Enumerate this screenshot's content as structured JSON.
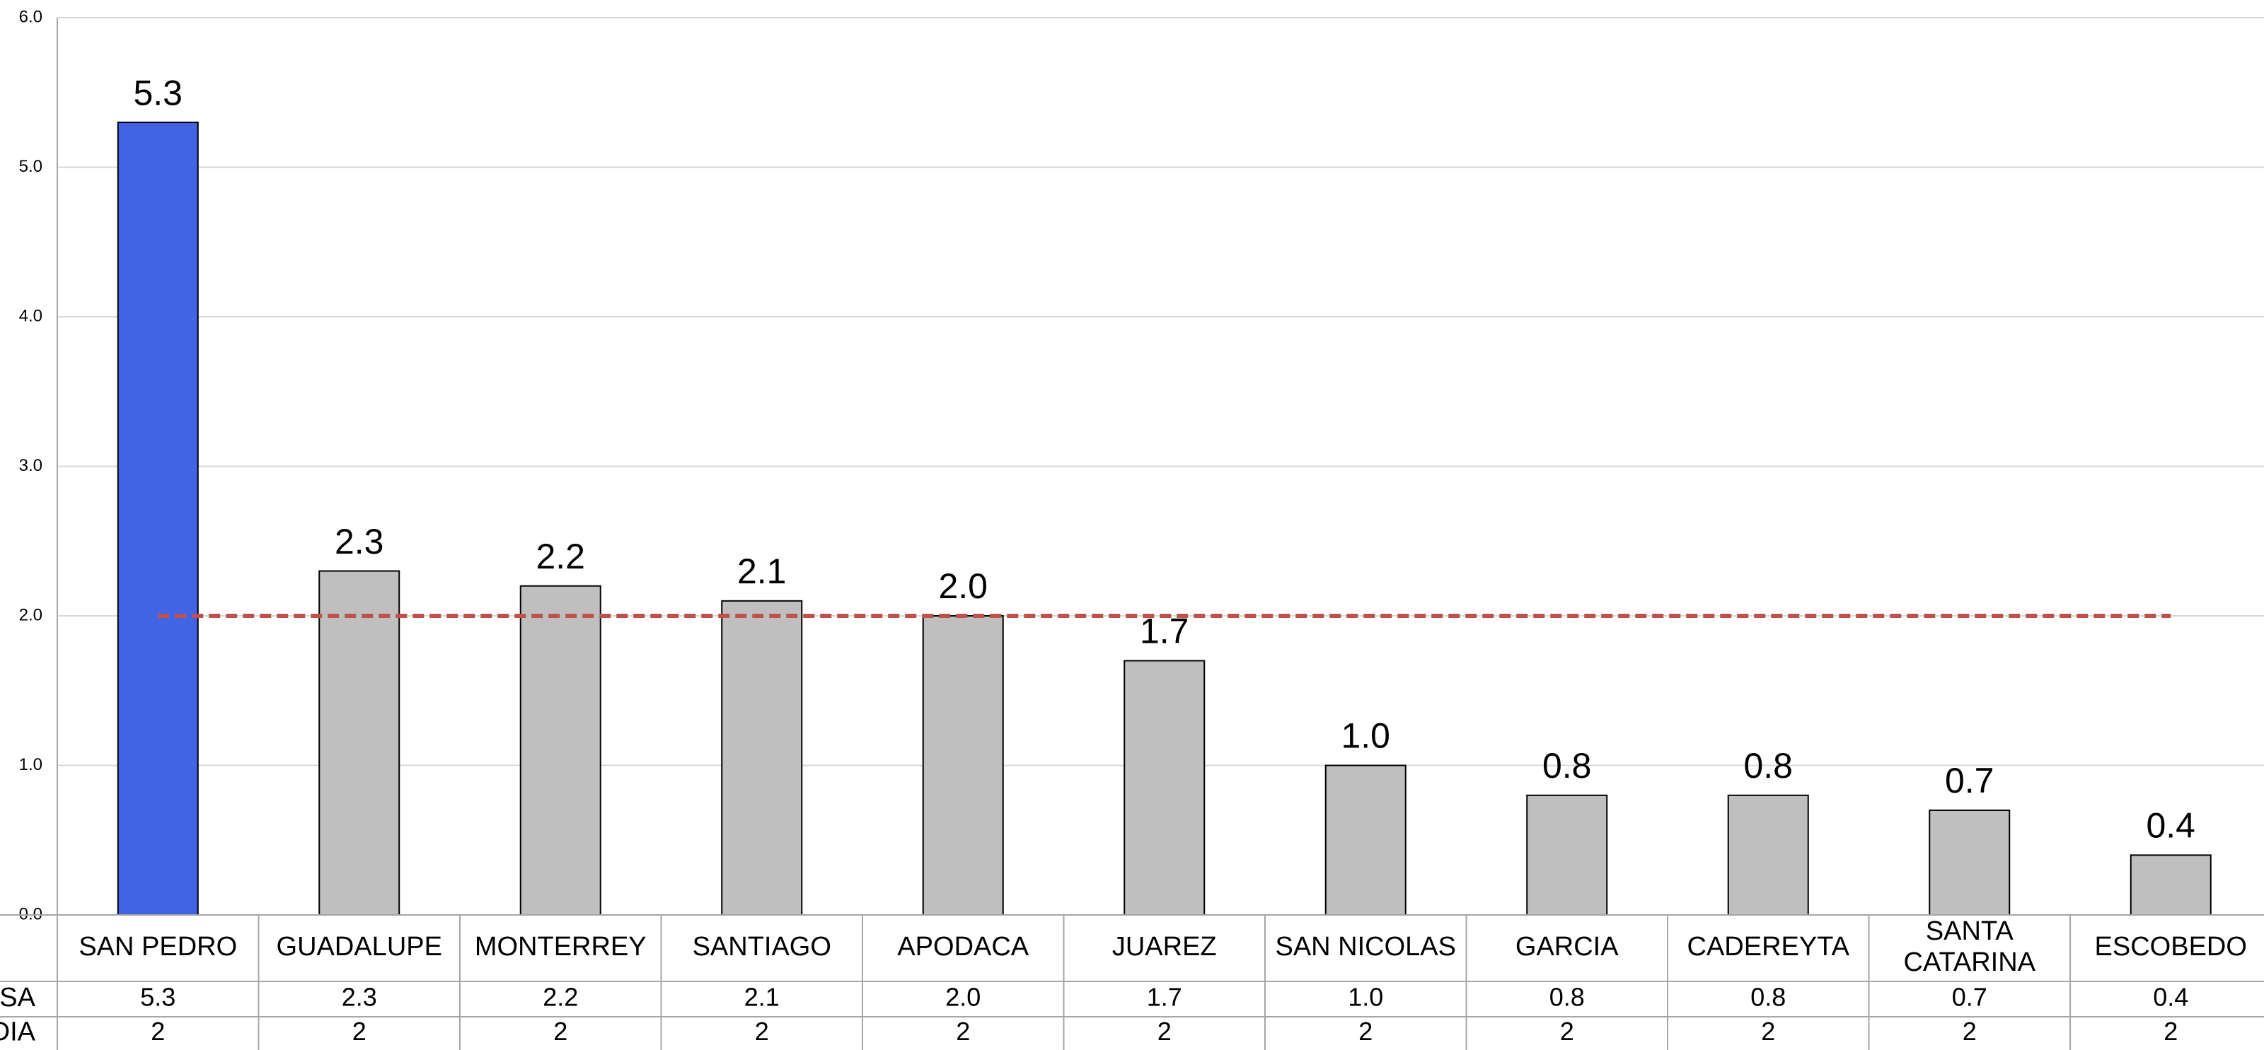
{
  "chart_data": {
    "type": "bar",
    "categories": [
      "SAN PEDRO",
      "GUADALUPE",
      "MONTERREY",
      "SANTIAGO",
      "APODACA",
      "JUAREZ",
      "SAN NICOLAS",
      "GARCIA",
      "CADEREYTA",
      "SANTA CATARINA",
      "ESCOBEDO"
    ],
    "series": [
      {
        "name": "TASA",
        "values": [
          5.3,
          2.3,
          2.2,
          2.1,
          2.0,
          1.7,
          1.0,
          0.8,
          0.8,
          0.7,
          0.4
        ]
      },
      {
        "name": "MEDIA",
        "values": [
          2,
          2,
          2,
          2,
          2,
          2,
          2,
          2,
          2,
          2,
          2
        ],
        "style": "dashed-line"
      }
    ],
    "value_labels": [
      "5.3",
      "2.3",
      "2.2",
      "2.1",
      "2.0",
      "1.7",
      "1.0",
      "0.8",
      "0.8",
      "0.7",
      "0.4"
    ],
    "table_row_labels": [
      "TASA",
      "MEDIA"
    ],
    "table_rows": [
      [
        "5.3",
        "2.3",
        "2.2",
        "2.1",
        "2.0",
        "1.7",
        "1.0",
        "0.8",
        "0.8",
        "0.7",
        "0.4"
      ],
      [
        "2",
        "2",
        "2",
        "2",
        "2",
        "2",
        "2",
        "2",
        "2",
        "2",
        "2"
      ]
    ],
    "y_ticks": [
      "0.0",
      "1.0",
      "2.0",
      "3.0",
      "4.0",
      "5.0",
      "6.0"
    ],
    "ylim": [
      0,
      6
    ],
    "grid": true,
    "title": "",
    "xlabel": "",
    "ylabel": "",
    "colors": {
      "highlight_bar": "#4064e4",
      "bar": "#bfbfbf",
      "bar_stroke": "#000000",
      "media_line": "#c0504d",
      "grid": "#d9d9d9",
      "axis": "#a6a6a6"
    }
  }
}
